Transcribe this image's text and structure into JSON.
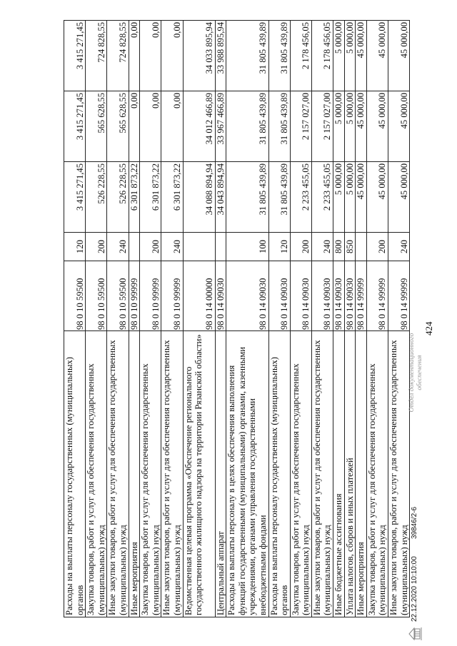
{
  "page_number": "424",
  "rows": [
    {
      "desc": "Расходы на выплаты персоналу государственных (муниципальных) органов",
      "code": "98 0 10 59500",
      "kvr": "120",
      "v1": "3 415 271,45",
      "v2": "3 415 271,45",
      "v3": "3 415 271,45"
    },
    {
      "desc": "Закупка товаров, работ и услуг для обеспечения государственных (муниципальных) нужд",
      "code": "98 0 10 59500",
      "kvr": "200",
      "v1": "526 228,55",
      "v2": "565 628,55",
      "v3": "724 828,55"
    },
    {
      "desc": "Иные закупки товаров, работ и услуг для обеспечения государственных (муниципальных) нужд",
      "code": "98 0 10 59500",
      "kvr": "240",
      "v1": "526 228,55",
      "v2": "565 628,55",
      "v3": "724 828,55"
    },
    {
      "desc": "Иные мероприятия",
      "code": "98 0 10 99999",
      "kvr": "",
      "v1": "6 301 873,22",
      "v2": "0,00",
      "v3": "0,00"
    },
    {
      "desc": "Закупка товаров, работ и услуг для обеспечения государственных (муниципальных) нужд",
      "code": "98 0 10 99999",
      "kvr": "200",
      "v1": "6 301 873,22",
      "v2": "0,00",
      "v3": "0,00"
    },
    {
      "desc": "Иные закупки товаров, работ и услуг для обеспечения государственных (муниципальных) нужд",
      "code": "98 0 10 99999",
      "kvr": "240",
      "v1": "6 301 873,22",
      "v2": "0,00",
      "v3": "0,00"
    },
    {
      "desc": "Ведомственная целевая программа «Обеспечение регионального государственного жилищного надзора на территории Рязанской области»",
      "code": "98 0 14 00000",
      "kvr": "",
      "v1": "34 088 894,94",
      "v2": "34 012 466,89",
      "v3": "34 033 895,94"
    },
    {
      "desc": "Центральный аппарат",
      "code": "98 0 14 09030",
      "kvr": "",
      "v1": "34 043 894,94",
      "v2": "33 967 466,89",
      "v3": "33 988 895,94"
    },
    {
      "desc": "Расходы на выплаты персоналу в целях обеспечения выполнения функций государственными (муниципальными) органами, казенными учреждениями, органами управления государственными внебюджетными фондами",
      "code": "98 0 14 09030",
      "kvr": "100",
      "v1": "31 805 439,89",
      "v2": "31 805 439,89",
      "v3": "31 805 439,89"
    },
    {
      "desc": "Расходы на выплаты персоналу государственных (муниципальных) органов",
      "code": "98 0 14 09030",
      "kvr": "120",
      "v1": "31 805 439,89",
      "v2": "31 805 439,89",
      "v3": "31 805 439,89"
    },
    {
      "desc": "Закупка товаров, работ и услуг для обеспечения государственных (муниципальных) нужд",
      "code": "98 0 14 09030",
      "kvr": "200",
      "v1": "2 233 455,05",
      "v2": "2 157 027,00",
      "v3": "2 178 456,05"
    },
    {
      "desc": "Иные закупки товаров, работ и услуг для обеспечения государственных (муниципальных) нужд",
      "code": "98 0 14 09030",
      "kvr": "240",
      "v1": "2 233 455,05",
      "v2": "2 157 027,00",
      "v3": "2 178 456,05"
    },
    {
      "desc": "Иные бюджетные ассигнования",
      "code": "98 0 14 09030",
      "kvr": "800",
      "v1": "5 000,00",
      "v2": "5 000,00",
      "v3": "5 000,00"
    },
    {
      "desc": "Уплата налогов, сборов и иных платежей",
      "code": "98 0 14 09030",
      "kvr": "850",
      "v1": "5 000,00",
      "v2": "5 000,00",
      "v3": "5 000,00"
    },
    {
      "desc": "Иные мероприятия",
      "code": "98 0 14 99999",
      "kvr": "",
      "v1": "45 000,00",
      "v2": "45 000,00",
      "v3": "45 000,00"
    },
    {
      "desc": "Закупка товаров, работ и услуг для обеспечения государственных (муниципальных) нужд",
      "code": "98 0 14 99999",
      "kvr": "200",
      "v1": "45 000,00",
      "v2": "45 000,00",
      "v3": "45 000,00"
    },
    {
      "desc": "Иные закупки товаров, работ и услуг для обеспечения государственных (муниципальных) нужд",
      "code": "98 0 14 99999",
      "kvr": "240",
      "v1": "45 000,00",
      "v2": "45 000,00",
      "v3": "45 000,00"
    }
  ],
  "footer": {
    "datetime": "22.12.2020 10:10:00",
    "doc_number": "39846/2-6",
    "stamp": "Отдел документационного обеспечения",
    "logo_icon": "building-emblem-icon"
  }
}
